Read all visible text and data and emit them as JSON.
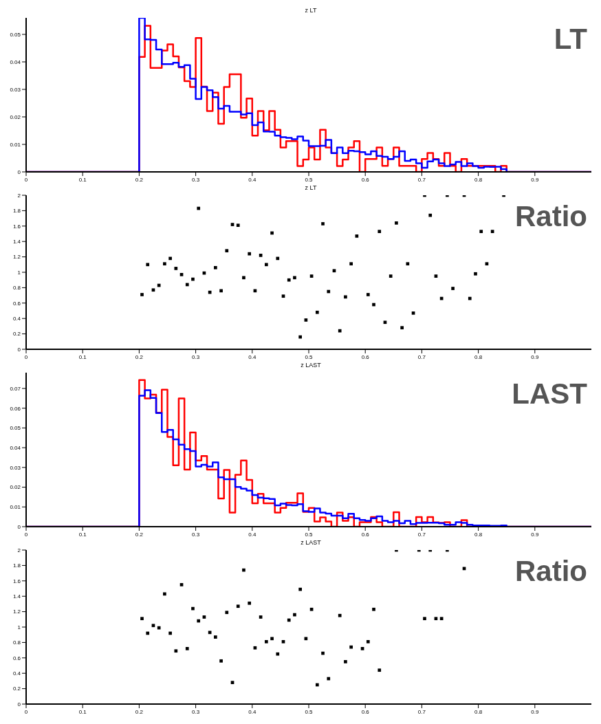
{
  "chart_data": [
    {
      "type": "histogram",
      "title": "z LT",
      "annotations": [
        "LT"
      ],
      "bins": [
        0,
        0.01,
        0.02,
        0.03,
        0.04,
        0.05,
        0.06,
        0.07,
        0.08,
        0.09,
        0.1,
        0.11,
        0.12,
        0.13,
        0.14,
        0.15,
        0.16,
        0.17,
        0.18,
        0.19,
        0.2,
        0.21,
        0.22,
        0.23,
        0.24,
        0.25,
        0.26,
        0.27,
        0.28,
        0.29,
        0.3,
        0.31,
        0.32,
        0.33,
        0.34,
        0.35,
        0.36,
        0.37,
        0.38,
        0.39,
        0.4,
        0.41,
        0.42,
        0.43,
        0.44,
        0.45,
        0.46,
        0.47,
        0.48,
        0.49,
        0.5,
        0.51,
        0.52,
        0.53,
        0.54,
        0.55,
        0.56,
        0.57,
        0.58,
        0.59,
        0.6,
        0.61,
        0.62,
        0.63,
        0.64,
        0.65,
        0.66,
        0.67,
        0.68,
        0.69,
        0.7,
        0.71,
        0.72,
        0.73,
        0.74,
        0.75,
        0.76,
        0.77,
        0.78,
        0.79,
        0.8,
        0.81,
        0.82,
        0.83,
        0.84,
        0.85,
        0.86,
        0.87,
        0.88,
        0.89,
        0.9,
        0.91,
        0.92,
        0.93,
        0.94,
        0.95,
        0.96,
        0.97,
        0.98,
        0.99,
        1
      ],
      "series": [
        {
          "color": "#ff0000",
          "values": [
            0,
            0,
            0,
            0,
            0,
            0,
            0,
            0,
            0,
            0,
            0,
            0,
            0,
            0,
            0,
            0,
            0,
            0,
            0,
            0,
            0.0418,
            0.0531,
            0.0378,
            0.0378,
            0.0441,
            0.0464,
            0.042,
            0.038,
            0.033,
            0.0309,
            0.0487,
            0.031,
            0.0221,
            0.0288,
            0.0175,
            0.0309,
            0.0355,
            0.0355,
            0.0197,
            0.0267,
            0.0132,
            0.0221,
            0.0151,
            0.0221,
            0.0153,
            0.0089,
            0.0112,
            0.0112,
            0.0021,
            0.0045,
            0.0089,
            0.0045,
            0.0153,
            0.0089,
            0.0068,
            0.0021,
            0.0045,
            0.0089,
            0.0112,
            0,
            0.0047,
            0.0047,
            0.0089,
            0.0022,
            0.0047,
            0.0089,
            0.0022,
            0.0022,
            0.0022,
            0,
            0.0047,
            0.0069,
            0.0047,
            0.0022,
            0.0069,
            0.0022,
            0,
            0.0047,
            0.0022,
            0.0022,
            0.0022,
            0.0022,
            0.0022,
            0,
            0.0022,
            0,
            0,
            0,
            0,
            0,
            0,
            0,
            0,
            0,
            0,
            0,
            0,
            0,
            0,
            0
          ]
        },
        {
          "color": "#0000ff",
          "values": [
            0,
            0,
            0,
            0,
            0,
            0,
            0,
            0,
            0,
            0,
            0,
            0,
            0,
            0,
            0,
            0,
            0,
            0,
            0,
            0,
            0.056,
            0.0482,
            0.048,
            0.0445,
            0.0392,
            0.0392,
            0.0397,
            0.0382,
            0.0388,
            0.0339,
            0.0265,
            0.0309,
            0.0297,
            0.0272,
            0.023,
            0.024,
            0.0219,
            0.0219,
            0.0209,
            0.0213,
            0.017,
            0.018,
            0.0147,
            0.0146,
            0.0132,
            0.0126,
            0.0124,
            0.0119,
            0.0129,
            0.0114,
            0.0094,
            0.0094,
            0.0095,
            0.0116,
            0.0068,
            0.0089,
            0.0068,
            0.0077,
            0.0075,
            0.0072,
            0.0064,
            0.0075,
            0.0058,
            0.0055,
            0.0047,
            0.0055,
            0.0075,
            0.004,
            0.0045,
            0.0031,
            0.0015,
            0.0038,
            0.0045,
            0.0031,
            0.0021,
            0.0027,
            0.0036,
            0.0021,
            0.0031,
            0.0021,
            0.0015,
            0.0019,
            0.0018,
            0.0019,
            0.001,
            0,
            0,
            0,
            0,
            0,
            0,
            0,
            0,
            0,
            0,
            0,
            0,
            0,
            0,
            0
          ]
        }
      ],
      "xlim": [
        0,
        1
      ],
      "xticks": [
        0,
        0.1,
        0.2,
        0.3,
        0.4,
        0.5,
        0.6,
        0.7,
        0.8,
        0.9
      ],
      "ylim": [
        0,
        0.056
      ],
      "yticks": [
        0,
        0.01,
        0.02,
        0.03,
        0.04,
        0.05
      ]
    },
    {
      "type": "scatter",
      "title": "z LT",
      "annotations": [
        "Ratio"
      ],
      "marker": "square",
      "series": [
        {
          "color": "#000000",
          "x": [
            0.205,
            0.215,
            0.225,
            0.235,
            0.245,
            0.255,
            0.265,
            0.275,
            0.285,
            0.295,
            0.305,
            0.315,
            0.325,
            0.335,
            0.345,
            0.355,
            0.365,
            0.375,
            0.385,
            0.395,
            0.405,
            0.415,
            0.425,
            0.435,
            0.445,
            0.455,
            0.465,
            0.475,
            0.485,
            0.495,
            0.505,
            0.515,
            0.525,
            0.535,
            0.545,
            0.555,
            0.565,
            0.575,
            0.585,
            0.605,
            0.615,
            0.625,
            0.635,
            0.645,
            0.655,
            0.665,
            0.675,
            0.685,
            0.705,
            0.715,
            0.725,
            0.735,
            0.745,
            0.755,
            0.775,
            0.785,
            0.795,
            0.805,
            0.815,
            0.825,
            0.845
          ],
          "values": [
            0.71,
            1.1,
            0.77,
            0.83,
            1.11,
            1.18,
            1.05,
            0.97,
            0.84,
            0.91,
            1.83,
            0.99,
            0.74,
            1.06,
            0.76,
            1.28,
            1.62,
            1.61,
            0.93,
            1.24,
            0.76,
            1.22,
            1.1,
            1.51,
            1.18,
            0.69,
            0.9,
            0.93,
            0.16,
            0.38,
            0.95,
            0.48,
            1.63,
            0.75,
            1.02,
            0.24,
            0.68,
            1.11,
            1.47,
            0.71,
            0.58,
            1.53,
            0.35,
            0.95,
            1.64,
            0.28,
            1.11,
            0.47,
            2,
            1.74,
            0.95,
            0.66,
            2,
            0.79,
            2,
            0.66,
            0.98,
            1.53,
            1.11,
            1.53,
            2
          ]
        }
      ],
      "xlim": [
        0,
        1
      ],
      "xticks": [
        0,
        0.1,
        0.2,
        0.3,
        0.4,
        0.5,
        0.6,
        0.7,
        0.8,
        0.9
      ],
      "ylim": [
        0,
        2
      ],
      "yticks": [
        0,
        0.2,
        0.4,
        0.6,
        0.8,
        1,
        1.2,
        1.4,
        1.6,
        1.8,
        2
      ]
    },
    {
      "type": "histogram",
      "title": "z LAST",
      "annotations": [
        "LAST"
      ],
      "bins": [
        0,
        0.01,
        0.02,
        0.03,
        0.04,
        0.05,
        0.06,
        0.07,
        0.08,
        0.09,
        0.1,
        0.11,
        0.12,
        0.13,
        0.14,
        0.15,
        0.16,
        0.17,
        0.18,
        0.19,
        0.2,
        0.21,
        0.22,
        0.23,
        0.24,
        0.25,
        0.26,
        0.27,
        0.28,
        0.29,
        0.3,
        0.31,
        0.32,
        0.33,
        0.34,
        0.35,
        0.36,
        0.37,
        0.38,
        0.39,
        0.4,
        0.41,
        0.42,
        0.43,
        0.44,
        0.45,
        0.46,
        0.47,
        0.48,
        0.49,
        0.5,
        0.51,
        0.52,
        0.53,
        0.54,
        0.55,
        0.56,
        0.57,
        0.58,
        0.59,
        0.6,
        0.61,
        0.62,
        0.63,
        0.64,
        0.65,
        0.66,
        0.67,
        0.68,
        0.69,
        0.7,
        0.71,
        0.72,
        0.73,
        0.74,
        0.75,
        0.76,
        0.77,
        0.78,
        0.79,
        0.8,
        0.81,
        0.82,
        0.83,
        0.84,
        0.85,
        0.86,
        0.87,
        0.88,
        0.89,
        0.9,
        0.91,
        0.92,
        0.93,
        0.94,
        0.95,
        0.96,
        0.97,
        0.98,
        0.99,
        1
      ],
      "series": [
        {
          "color": "#ff0000",
          "values": [
            0,
            0,
            0,
            0,
            0,
            0,
            0,
            0,
            0,
            0,
            0,
            0,
            0,
            0,
            0,
            0,
            0,
            0,
            0,
            0,
            0.0743,
            0.0649,
            0.0669,
            0.0577,
            0.0694,
            0.0454,
            0.0311,
            0.0649,
            0.0289,
            0.0477,
            0.0335,
            0.0358,
            0.0289,
            0.0289,
            0.0143,
            0.0287,
            0.0071,
            0.0263,
            0.0335,
            0.0237,
            0.0118,
            0.0166,
            0.0118,
            0.0118,
            0.0071,
            0.0095,
            0.0121,
            0.0121,
            0.0169,
            0.0075,
            0.0095,
            0.0026,
            0.0047,
            0.0026,
            0,
            0.0071,
            0.003,
            0.0048,
            0,
            0.0023,
            0.0023,
            0.0049,
            0.0023,
            0,
            0,
            0.0073,
            0,
            0,
            0,
            0.0049,
            0.0023,
            0.0049,
            0.0022,
            0.0019,
            0.0023,
            0,
            0,
            0.0033,
            0,
            0,
            0,
            0,
            0,
            0,
            0,
            0,
            0,
            0,
            0,
            0,
            0,
            0,
            0,
            0,
            0,
            0,
            0,
            0,
            0,
            0
          ]
        },
        {
          "color": "#0000ff",
          "values": [
            0,
            0,
            0,
            0,
            0,
            0,
            0,
            0,
            0,
            0,
            0,
            0,
            0,
            0,
            0,
            0,
            0,
            0,
            0,
            0,
            0.0663,
            0.0691,
            0.0652,
            0.0575,
            0.048,
            0.049,
            0.0442,
            0.0415,
            0.0393,
            0.0383,
            0.0305,
            0.0313,
            0.0305,
            0.0326,
            0.025,
            0.024,
            0.024,
            0.0201,
            0.0192,
            0.0183,
            0.016,
            0.0147,
            0.0144,
            0.014,
            0.0108,
            0.0117,
            0.011,
            0.0108,
            0.0114,
            0.0078,
            0.0075,
            0.0092,
            0.0071,
            0.0066,
            0.0056,
            0.0056,
            0.0043,
            0.0065,
            0.0043,
            0.0034,
            0.003,
            0.0043,
            0.0052,
            0.003,
            0.0023,
            0.003,
            0.0017,
            0.003,
            0.0013,
            0.0019,
            0.0019,
            0.002,
            0.002,
            0.0017,
            0.001,
            0.001,
            0.0023,
            0.0019,
            0.001,
            0.0006,
            0.0006,
            0.0006,
            0.0004,
            0.0004,
            0.0006,
            0,
            0,
            0,
            0,
            0,
            0,
            0,
            0,
            0,
            0,
            0,
            0,
            0,
            0,
            0
          ]
        }
      ],
      "xlim": [
        0,
        1
      ],
      "xticks": [
        0,
        0.1,
        0.2,
        0.3,
        0.4,
        0.5,
        0.6,
        0.7,
        0.8,
        0.9
      ],
      "ylim": [
        0,
        0.078
      ],
      "yticks": [
        0,
        0.01,
        0.02,
        0.03,
        0.04,
        0.05,
        0.06,
        0.07
      ]
    },
    {
      "type": "scatter",
      "title": "z LAST",
      "annotations": [
        "Ratio"
      ],
      "marker": "square",
      "series": [
        {
          "color": "#000000",
          "x": [
            0.205,
            0.215,
            0.225,
            0.235,
            0.245,
            0.255,
            0.265,
            0.275,
            0.285,
            0.295,
            0.305,
            0.315,
            0.325,
            0.335,
            0.345,
            0.355,
            0.365,
            0.375,
            0.385,
            0.395,
            0.405,
            0.415,
            0.425,
            0.435,
            0.445,
            0.455,
            0.465,
            0.475,
            0.485,
            0.495,
            0.505,
            0.515,
            0.525,
            0.535,
            0.555,
            0.565,
            0.575,
            0.595,
            0.605,
            0.615,
            0.625,
            0.655,
            0.695,
            0.705,
            0.715,
            0.725,
            0.735,
            0.745,
            0.775
          ],
          "values": [
            1.11,
            0.92,
            1.02,
            0.99,
            1.43,
            0.92,
            0.69,
            1.55,
            0.72,
            1.24,
            1.08,
            1.13,
            0.93,
            0.87,
            0.56,
            1.19,
            0.28,
            1.27,
            1.74,
            1.31,
            0.73,
            1.13,
            0.81,
            0.85,
            0.65,
            0.81,
            1.09,
            1.16,
            1.49,
            0.85,
            1.23,
            0.25,
            0.66,
            0.33,
            1.15,
            0.55,
            0.74,
            0.72,
            0.81,
            1.23,
            0.44,
            2,
            2,
            1.11,
            2,
            1.11,
            1.11,
            2,
            1.76
          ]
        }
      ],
      "xlim": [
        0,
        1
      ],
      "xticks": [
        0,
        0.1,
        0.2,
        0.3,
        0.4,
        0.5,
        0.6,
        0.7,
        0.8,
        0.9
      ],
      "ylim": [
        0,
        2
      ],
      "yticks": [
        0,
        0.2,
        0.4,
        0.6,
        0.8,
        1,
        1.2,
        1.4,
        1.6,
        1.8,
        2
      ]
    }
  ]
}
